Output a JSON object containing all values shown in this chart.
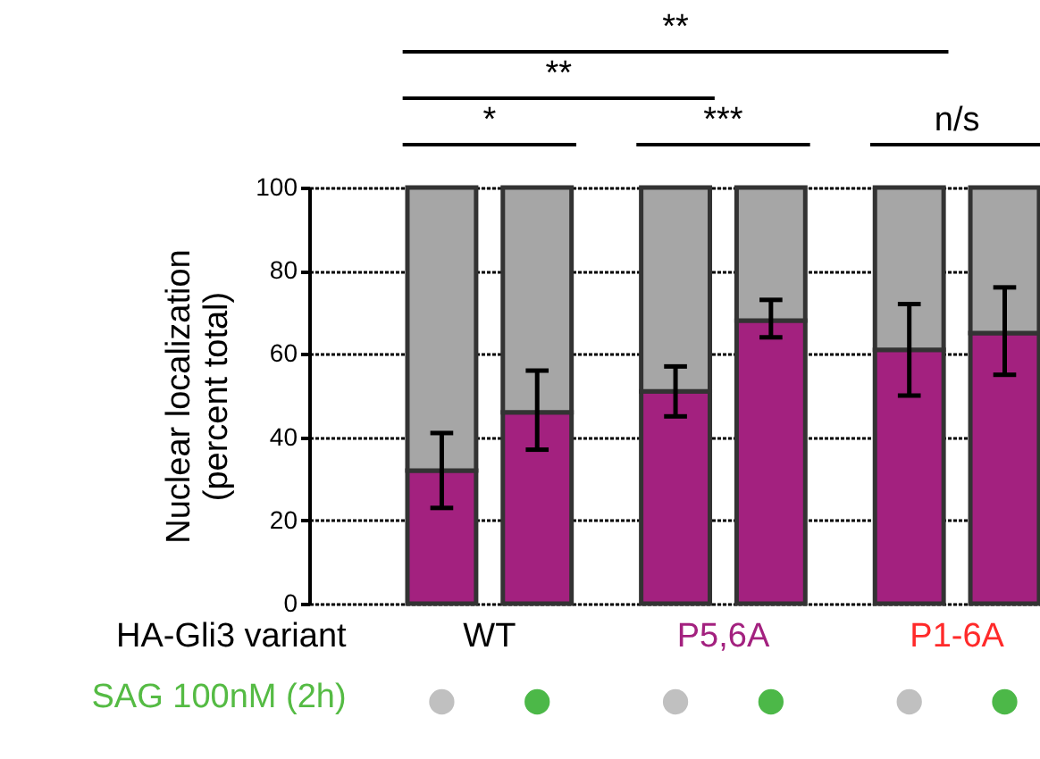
{
  "chart_data": {
    "type": "bar",
    "stacked": true,
    "categories": [
      null,
      null,
      null,
      null,
      null,
      null
    ],
    "series": [
      {
        "color": "#a3217f",
        "values": [
          32,
          46,
          51,
          68,
          61,
          65
        ],
        "errors": [
          [
            23,
            41
          ],
          [
            37,
            56
          ],
          [
            45,
            57
          ],
          [
            64,
            73
          ],
          [
            50,
            72
          ],
          [
            55,
            76
          ]
        ]
      },
      {
        "color": "#a6a6a6",
        "values": [
          68,
          54,
          49,
          32,
          39,
          35
        ]
      }
    ],
    "ylabel": "Nuclear localization\n(percent total)",
    "ylim": [
      0,
      100
    ],
    "yticks": [
      0,
      20,
      40,
      60,
      80,
      100
    ],
    "grid": "y",
    "tick_labels": "y",
    "annotations": [
      "**",
      "**",
      "*",
      "***",
      "n/s",
      "HA-Gli3 variant",
      "WT",
      "P5,6A",
      "P1-6A",
      "SAG 100nM (2h)"
    ]
  }
}
